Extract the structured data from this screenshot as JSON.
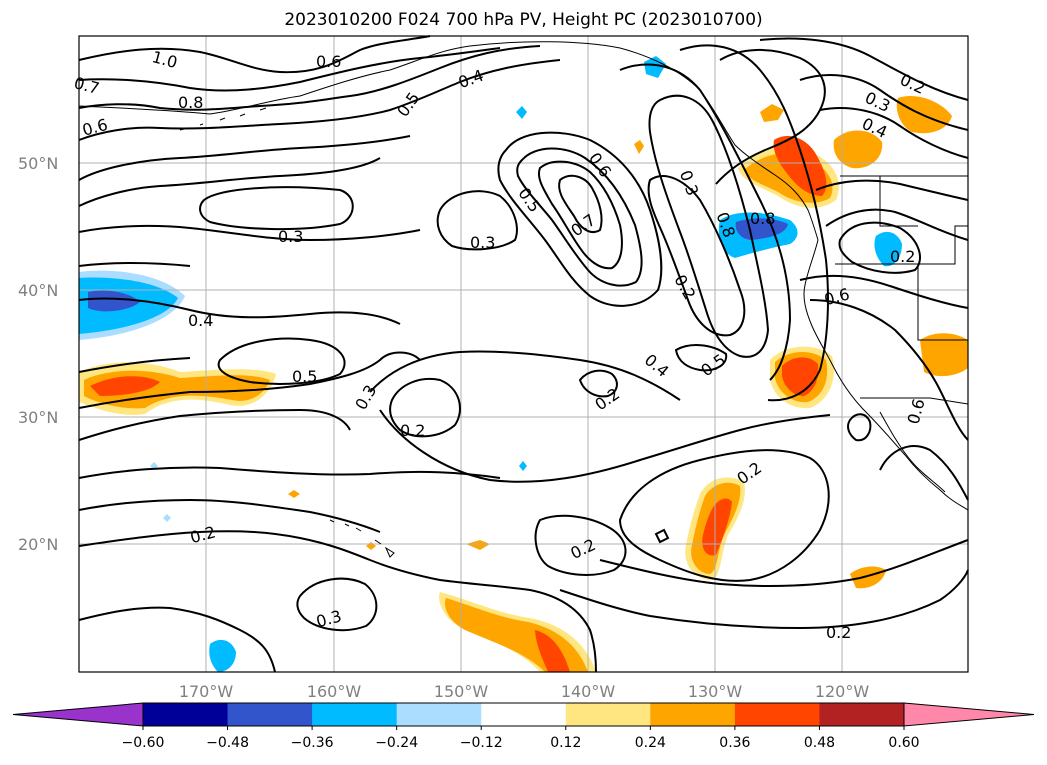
{
  "title": "2023010200 F024 700 hPa PV, Height PC (2023010700)",
  "lon_labels": [
    "170°W",
    "160°W",
    "150°W",
    "140°W",
    "130°W",
    "120°W"
  ],
  "lat_labels": [
    "50°N",
    "40°N",
    "30°N",
    "20°N"
  ],
  "colorbar": {
    "tick_labels": [
      "−0.60",
      "−0.48",
      "−0.36",
      "−0.24",
      "−0.12",
      "0.12",
      "0.24",
      "0.36",
      "0.48",
      "0.60"
    ],
    "colors": [
      "#9933cc",
      "#000099",
      "#3355cc",
      "#00bbff",
      "#aaddff",
      "#ffffff",
      "#ffe680",
      "#ffa500",
      "#ff4500",
      "#b22222",
      "#ff88aa"
    ]
  },
  "contour_labels": [
    {
      "text": "1.0"
    },
    {
      "text": "0.6"
    },
    {
      "text": "0.4"
    },
    {
      "text": "0.7"
    },
    {
      "text": "0.5"
    },
    {
      "text": "0.8"
    },
    {
      "text": "0.6"
    },
    {
      "text": "0.2"
    },
    {
      "text": "0.3"
    },
    {
      "text": "0.4"
    },
    {
      "text": "0.3"
    },
    {
      "text": "0.3"
    },
    {
      "text": "0.5"
    },
    {
      "text": "0.7"
    },
    {
      "text": "0.6"
    },
    {
      "text": "0.3"
    },
    {
      "text": "0.8"
    },
    {
      "text": "0.8"
    },
    {
      "text": "0.4"
    },
    {
      "text": "0.2"
    },
    {
      "text": "0.6"
    },
    {
      "text": "0.5"
    },
    {
      "text": "0.4"
    },
    {
      "text": "0.3"
    },
    {
      "text": "0.2"
    },
    {
      "text": "0.2"
    },
    {
      "text": "0.2"
    },
    {
      "text": "0.6"
    },
    {
      "text": "0.2"
    },
    {
      "text": "0.2"
    },
    {
      "text": "0.2"
    },
    {
      "text": "0.3"
    },
    {
      "text": "0.2"
    },
    {
      "text": "0.5"
    }
  ]
}
